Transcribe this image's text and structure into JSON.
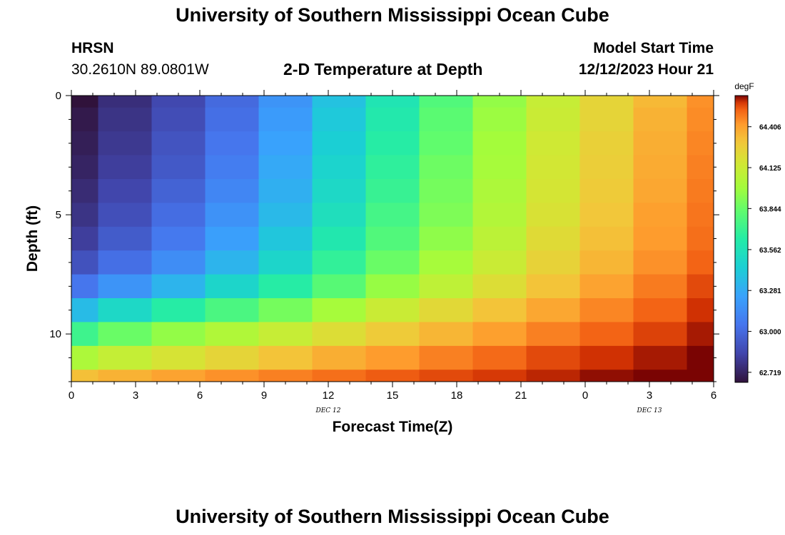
{
  "header": {
    "title": "University of Southern Mississippi Ocean Cube",
    "station": "HRSN",
    "coordinates": "30.2610N  89.0801W",
    "subtitle": "2-D Temperature at Depth",
    "model_start_label": "Model Start Time",
    "model_start_value": "12/12/2023 Hour 21"
  },
  "footer": {
    "title": "University of Southern Mississippi Ocean Cube"
  },
  "chart_data": {
    "type": "heatmap",
    "xlabel": "Forecast Time(Z)",
    "ylabel": "Depth (ft)",
    "x_tick_labels": [
      "0",
      "3",
      "6",
      "9",
      "12",
      "15",
      "18",
      "21",
      "0",
      "3",
      "6"
    ],
    "x_range_hours": [
      0,
      30
    ],
    "date_labels": [
      {
        "text": "DEC 12",
        "at_hour": 12
      },
      {
        "text": "DEC 13",
        "at_hour": 27
      }
    ],
    "y_tick_labels": [
      "0",
      "5",
      "10"
    ],
    "y_range_ft": [
      0,
      12
    ],
    "colorbar": {
      "unit": "degF",
      "ticks": [
        "62.719",
        "63.000",
        "63.281",
        "63.562",
        "63.844",
        "64.125",
        "64.406"
      ],
      "range": [
        62.65,
        64.62
      ]
    },
    "column_times_hours": [
      0,
      2.5,
      5,
      7.5,
      10,
      12.5,
      15,
      17.5,
      20,
      22.5,
      25,
      27.5,
      30
    ],
    "row_depths_ft": [
      0,
      1,
      2,
      3,
      4,
      5,
      6,
      7,
      8,
      9,
      10,
      11,
      12
    ],
    "values": [
      [
        62.65,
        62.76,
        62.86,
        63.0,
        63.18,
        63.38,
        63.58,
        63.78,
        63.95,
        64.11,
        64.24,
        64.34,
        64.44
      ],
      [
        62.68,
        62.78,
        62.88,
        63.02,
        63.21,
        63.41,
        63.61,
        63.81,
        63.97,
        64.12,
        64.24,
        64.36,
        64.45
      ],
      [
        62.7,
        62.8,
        62.91,
        63.05,
        63.24,
        63.44,
        63.64,
        63.83,
        63.99,
        64.14,
        64.26,
        64.37,
        64.46
      ],
      [
        62.72,
        62.82,
        62.93,
        63.08,
        63.27,
        63.47,
        63.67,
        63.86,
        64.0,
        64.15,
        64.27,
        64.38,
        64.47
      ],
      [
        62.75,
        62.85,
        62.97,
        63.12,
        63.3,
        63.5,
        63.7,
        63.88,
        64.02,
        64.16,
        64.28,
        64.39,
        64.48
      ],
      [
        62.78,
        62.89,
        63.01,
        63.17,
        63.34,
        63.54,
        63.74,
        63.9,
        64.04,
        64.18,
        64.3,
        64.41,
        64.49
      ],
      [
        62.82,
        62.94,
        63.06,
        63.23,
        63.4,
        63.6,
        63.78,
        63.94,
        64.07,
        64.21,
        64.32,
        64.42,
        64.5
      ],
      [
        62.9,
        63.02,
        63.15,
        63.32,
        63.48,
        63.68,
        63.85,
        64.0,
        64.12,
        64.25,
        64.35,
        64.44,
        64.52
      ],
      [
        63.05,
        63.18,
        63.32,
        63.48,
        63.64,
        63.8,
        63.96,
        64.08,
        64.2,
        64.31,
        64.4,
        64.48,
        64.55
      ],
      [
        63.35,
        63.5,
        63.64,
        63.76,
        63.88,
        64.0,
        64.12,
        64.22,
        64.31,
        64.39,
        64.46,
        64.52,
        64.58
      ],
      [
        63.72,
        63.85,
        63.95,
        64.03,
        64.11,
        64.2,
        64.28,
        64.35,
        64.41,
        64.47,
        64.52,
        64.56,
        64.6
      ],
      [
        64.02,
        64.1,
        64.17,
        64.24,
        64.31,
        64.37,
        64.42,
        64.47,
        64.51,
        64.55,
        64.58,
        64.6,
        64.62
      ],
      [
        64.32,
        64.36,
        64.4,
        64.44,
        64.47,
        64.5,
        64.53,
        64.55,
        64.57,
        64.59,
        64.61,
        64.62,
        64.63
      ]
    ]
  }
}
